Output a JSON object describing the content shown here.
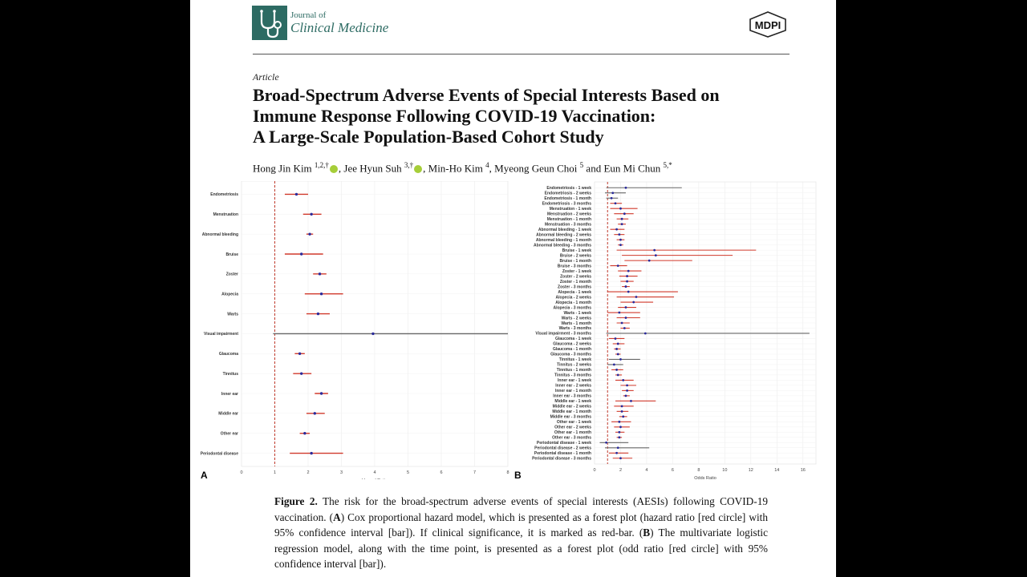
{
  "header": {
    "journal_line1": "Journal of",
    "journal_line2": "Clinical Medicine",
    "publisher": "MDPI"
  },
  "article": {
    "type": "Article",
    "title_lines": [
      "Broad-Spectrum Adverse Events of Special Interests Based on",
      "Immune Response Following COVID-19 Vaccination:",
      "A Large-Scale Population-Based Cohort Study"
    ],
    "authors": [
      {
        "name": "Hong Jin Kim",
        "affil": "1,2,†"
      },
      {
        "name": "Jee Hyun Suh",
        "affil": "3,†"
      },
      {
        "name": "Min-Ho Kim",
        "affil": "4"
      },
      {
        "name": "Myeong Geun Choi",
        "affil": "5"
      },
      {
        "name": "Eun Mi Chun",
        "affil": "5,*"
      }
    ],
    "separators": [
      ", ",
      ", ",
      ", ",
      " and "
    ]
  },
  "figure": {
    "panel_a": "A",
    "panel_b": "B",
    "caption_label": "Figure 2.",
    "caption_1": "The risk for the broad-spectrum adverse events of special interests (AESIs) following COVID-19 vaccination.",
    "caption_2": "Cox proportional hazard model, which is presented as a forest plot (hazard ratio [red circle] with 95% confidence interval [bar]). If clinical significance, it is marked as red-bar.",
    "caption_3": "The multivariate logistic regression model, along with the time point, is presented as a forest plot (odd ratio [red circle] with 95% confidence interval [bar])."
  },
  "chart_data": [
    {
      "type": "forest",
      "panel": "A",
      "xlabel": "Hazard Ratio",
      "xlim": [
        0,
        8
      ],
      "xticks": [
        0,
        1,
        2,
        3,
        4,
        5,
        6,
        7,
        8
      ],
      "reference_line": 1,
      "colors": {
        "significant": "#d0392b",
        "nonsignificant": "#666666",
        "point": "#2a2a9a",
        "reference": "#c0392b"
      },
      "rows": [
        {
          "label": "Endometriosis",
          "est": 1.65,
          "lo": 1.3,
          "hi": 2.0,
          "sig": true
        },
        {
          "label": "Menstruation",
          "est": 2.1,
          "lo": 1.85,
          "hi": 2.4,
          "sig": true
        },
        {
          "label": "Abnormal bleeding",
          "est": 2.05,
          "lo": 1.95,
          "hi": 2.15,
          "sig": true
        },
        {
          "label": "Bruise",
          "est": 1.8,
          "lo": 1.3,
          "hi": 2.45,
          "sig": true
        },
        {
          "label": "Zoster",
          "est": 2.35,
          "lo": 2.15,
          "hi": 2.55,
          "sig": true
        },
        {
          "label": "Alopecia",
          "est": 2.4,
          "lo": 1.9,
          "hi": 3.05,
          "sig": true
        },
        {
          "label": "Warts",
          "est": 2.3,
          "lo": 1.95,
          "hi": 2.65,
          "sig": true
        },
        {
          "label": "Visual impairment",
          "est": 3.95,
          "lo": 0.95,
          "hi": 8.0,
          "sig": false
        },
        {
          "label": "Glaucoma",
          "est": 1.75,
          "lo": 1.6,
          "hi": 1.9,
          "sig": true
        },
        {
          "label": "Tinnitus",
          "est": 1.8,
          "lo": 1.55,
          "hi": 2.1,
          "sig": true
        },
        {
          "label": "Inner ear",
          "est": 2.4,
          "lo": 2.2,
          "hi": 2.6,
          "sig": true
        },
        {
          "label": "Middle ear",
          "est": 2.2,
          "lo": 1.95,
          "hi": 2.5,
          "sig": true
        },
        {
          "label": "Other ear",
          "est": 1.9,
          "lo": 1.75,
          "hi": 2.05,
          "sig": true
        },
        {
          "label": "Periodontal disease",
          "est": 2.1,
          "lo": 1.45,
          "hi": 3.05,
          "sig": true
        }
      ]
    },
    {
      "type": "forest",
      "panel": "B",
      "xlabel": "Odds Ratio",
      "xlim": [
        0,
        17
      ],
      "xticks": [
        0,
        2,
        4,
        6,
        8,
        10,
        12,
        14,
        16
      ],
      "reference_line": 1,
      "colors": {
        "significant": "#d0392b",
        "nonsignificant": "#666666",
        "point": "#2a2a9a",
        "reference": "#c0392b"
      },
      "rows": [
        {
          "label": "Endometriosis - 1 week",
          "est": 2.4,
          "lo": 0.9,
          "hi": 6.7,
          "sig": false
        },
        {
          "label": "Endometriosis - 2 weeks",
          "est": 1.4,
          "lo": 0.8,
          "hi": 2.4,
          "sig": false
        },
        {
          "label": "Endometriosis - 1 month",
          "est": 1.3,
          "lo": 0.9,
          "hi": 1.8,
          "sig": false
        },
        {
          "label": "Endometriosis - 3 months",
          "est": 1.6,
          "lo": 1.2,
          "hi": 2.1,
          "sig": true
        },
        {
          "label": "Menstruation - 1 week",
          "est": 2.0,
          "lo": 1.2,
          "hi": 3.3,
          "sig": true
        },
        {
          "label": "Menstruation - 2 weeks",
          "est": 2.3,
          "lo": 1.5,
          "hi": 3.0,
          "sig": true
        },
        {
          "label": "Menstruation - 1 month",
          "est": 2.1,
          "lo": 1.7,
          "hi": 2.6,
          "sig": true
        },
        {
          "label": "Menstruation - 3 months",
          "est": 2.1,
          "lo": 1.8,
          "hi": 2.4,
          "sig": true
        },
        {
          "label": "Abnormal bleeding - 1 week",
          "est": 1.7,
          "lo": 1.2,
          "hi": 2.3,
          "sig": true
        },
        {
          "label": "Abnormal bleeding - 2 weeks",
          "est": 1.9,
          "lo": 1.5,
          "hi": 2.3,
          "sig": true
        },
        {
          "label": "Abnormal bleeding - 1 month",
          "est": 2.0,
          "lo": 1.7,
          "hi": 2.3,
          "sig": true
        },
        {
          "label": "Abnormal bleeding - 3 months",
          "est": 2.0,
          "lo": 1.8,
          "hi": 2.2,
          "sig": true
        },
        {
          "label": "Bruise - 1 week",
          "est": 4.6,
          "lo": 1.7,
          "hi": 12.4,
          "sig": true
        },
        {
          "label": "Bruise - 2 weeks",
          "est": 4.7,
          "lo": 2.1,
          "hi": 10.6,
          "sig": true
        },
        {
          "label": "Bruise - 1 month",
          "est": 4.2,
          "lo": 2.3,
          "hi": 7.5,
          "sig": true
        },
        {
          "label": "Bruise - 3 months",
          "est": 1.8,
          "lo": 1.2,
          "hi": 2.5,
          "sig": true
        },
        {
          "label": "Zoster - 1 week",
          "est": 2.6,
          "lo": 1.8,
          "hi": 3.6,
          "sig": true
        },
        {
          "label": "Zoster - 2 weeks",
          "est": 2.5,
          "lo": 1.9,
          "hi": 3.3,
          "sig": true
        },
        {
          "label": "Zoster - 1 month",
          "est": 2.5,
          "lo": 2.0,
          "hi": 3.0,
          "sig": true
        },
        {
          "label": "Zoster - 3 months",
          "est": 2.4,
          "lo": 2.1,
          "hi": 2.7,
          "sig": true
        },
        {
          "label": "Alopecia - 1 week",
          "est": 2.6,
          "lo": 1.0,
          "hi": 6.4,
          "sig": true
        },
        {
          "label": "Alopecia - 2 weeks",
          "est": 3.2,
          "lo": 1.7,
          "hi": 6.1,
          "sig": true
        },
        {
          "label": "Alopecia - 1 month",
          "est": 3.0,
          "lo": 2.0,
          "hi": 4.5,
          "sig": true
        },
        {
          "label": "Alopecia - 3 months",
          "est": 2.4,
          "lo": 1.8,
          "hi": 3.2,
          "sig": true
        },
        {
          "label": "Warts - 1 week",
          "est": 1.9,
          "lo": 1.0,
          "hi": 3.5,
          "sig": true
        },
        {
          "label": "Warts - 2 weeks",
          "est": 2.4,
          "lo": 1.7,
          "hi": 3.5,
          "sig": true
        },
        {
          "label": "Warts - 1 month",
          "est": 2.1,
          "lo": 1.7,
          "hi": 2.7,
          "sig": true
        },
        {
          "label": "Warts - 3 months",
          "est": 2.3,
          "lo": 2.0,
          "hi": 2.7,
          "sig": true
        },
        {
          "label": "Visual impairment - 3 months",
          "est": 3.9,
          "lo": 0.9,
          "hi": 16.5,
          "sig": false
        },
        {
          "label": "Glaucoma - 1 week",
          "est": 1.6,
          "lo": 1.1,
          "hi": 2.3,
          "sig": true
        },
        {
          "label": "Glaucoma - 2 weeks",
          "est": 1.8,
          "lo": 1.4,
          "hi": 2.3,
          "sig": true
        },
        {
          "label": "Glaucoma - 1 month",
          "est": 1.7,
          "lo": 1.5,
          "hi": 2.0,
          "sig": true
        },
        {
          "label": "Glaucoma - 3 months",
          "est": 1.8,
          "lo": 1.6,
          "hi": 2.0,
          "sig": true
        },
        {
          "label": "Tinnitus - 1 week",
          "est": 2.0,
          "lo": 1.1,
          "hi": 3.5,
          "sig": false
        },
        {
          "label": "Tinnitus - 2 weeks",
          "est": 1.5,
          "lo": 1.0,
          "hi": 2.2,
          "sig": false
        },
        {
          "label": "Tinnitus - 1 month",
          "est": 1.7,
          "lo": 1.3,
          "hi": 2.2,
          "sig": true
        },
        {
          "label": "Tinnitus - 3 months",
          "est": 1.8,
          "lo": 1.6,
          "hi": 2.1,
          "sig": true
        },
        {
          "label": "Inner ear - 1 week",
          "est": 2.2,
          "lo": 1.6,
          "hi": 3.0,
          "sig": true
        },
        {
          "label": "Inner ear - 2 weeks",
          "est": 2.5,
          "lo": 2.0,
          "hi": 3.2,
          "sig": true
        },
        {
          "label": "Inner ear - 1 month",
          "est": 2.5,
          "lo": 2.1,
          "hi": 3.0,
          "sig": true
        },
        {
          "label": "Inner ear - 3 months",
          "est": 2.4,
          "lo": 2.2,
          "hi": 2.7,
          "sig": true
        },
        {
          "label": "Middle ear - 1 week",
          "est": 2.8,
          "lo": 1.6,
          "hi": 4.7,
          "sig": true
        },
        {
          "label": "Middle ear - 2 weeks",
          "est": 2.1,
          "lo": 1.5,
          "hi": 3.0,
          "sig": true
        },
        {
          "label": "Middle ear - 1 month",
          "est": 2.1,
          "lo": 1.7,
          "hi": 2.6,
          "sig": true
        },
        {
          "label": "Middle ear - 3 months",
          "est": 2.2,
          "lo": 1.9,
          "hi": 2.5,
          "sig": true
        },
        {
          "label": "Other ear - 1 week",
          "est": 1.9,
          "lo": 1.3,
          "hi": 2.8,
          "sig": true
        },
        {
          "label": "Other ear - 2 weeks",
          "est": 2.0,
          "lo": 1.5,
          "hi": 2.7,
          "sig": true
        },
        {
          "label": "Other ear - 1 month",
          "est": 1.9,
          "lo": 1.6,
          "hi": 2.3,
          "sig": true
        },
        {
          "label": "Other ear - 3 months",
          "est": 1.9,
          "lo": 1.7,
          "hi": 2.1,
          "sig": true
        },
        {
          "label": "Periodontal disease - 1 week",
          "est": 0.9,
          "lo": 0.4,
          "hi": 2.6,
          "sig": false
        },
        {
          "label": "Periodontal disease - 2 weeks",
          "est": 1.8,
          "lo": 0.8,
          "hi": 4.2,
          "sig": false
        },
        {
          "label": "Periodontal disease - 1 month",
          "est": 1.7,
          "lo": 1.1,
          "hi": 2.6,
          "sig": true
        },
        {
          "label": "Periodontal disease - 3 months",
          "est": 2.0,
          "lo": 1.4,
          "hi": 2.9,
          "sig": true
        }
      ]
    }
  ]
}
